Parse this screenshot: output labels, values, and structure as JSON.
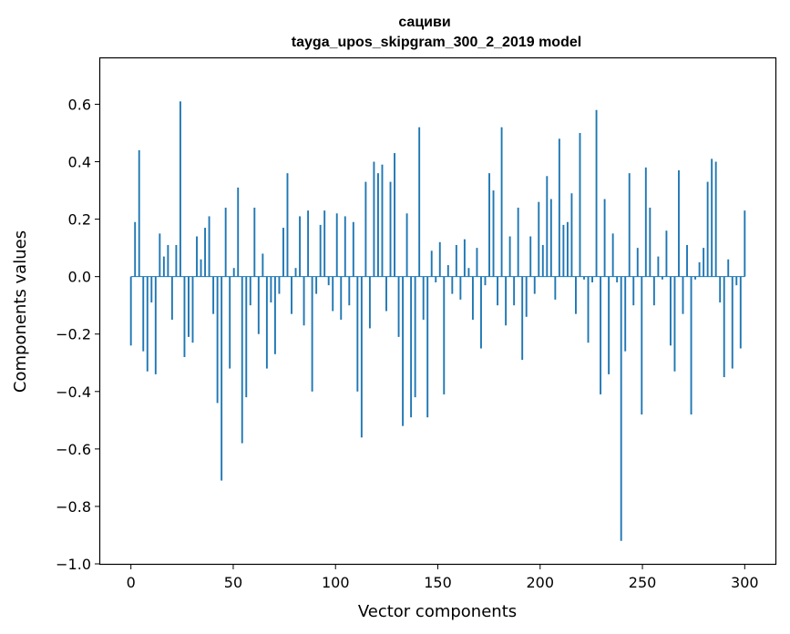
{
  "chart_data": {
    "type": "bar",
    "title": "сациви",
    "subtitle": "tayga_upos_skipgram_300_2_2019 model",
    "xlabel": "Vector components",
    "ylabel": "Components values",
    "xlim": [
      -15,
      315
    ],
    "ylim": [
      -1.0,
      0.76
    ],
    "xticks": [
      0,
      50,
      100,
      150,
      200,
      250,
      300
    ],
    "xtick_labels": [
      "0",
      "50",
      "100",
      "150",
      "200",
      "250",
      "300"
    ],
    "yticks": [
      -1.0,
      -0.8,
      -0.6,
      -0.4,
      -0.2,
      0.0,
      0.2,
      0.4,
      0.6
    ],
    "ytick_labels": [
      "−1.0",
      "−0.8",
      "−0.6",
      "−0.4",
      "−0.2",
      "0.0",
      "0.2",
      "0.4",
      "0.6"
    ],
    "bar_color": "#1f77b4",
    "values": [
      -0.24,
      0.19,
      0.44,
      -0.26,
      -0.33,
      -0.09,
      -0.34,
      0.15,
      0.07,
      0.11,
      -0.15,
      0.11,
      0.61,
      -0.28,
      -0.21,
      -0.23,
      0.14,
      0.06,
      0.17,
      0.21,
      -0.13,
      -0.44,
      -0.71,
      0.24,
      -0.32,
      0.03,
      0.31,
      -0.58,
      -0.42,
      -0.1,
      0.24,
      -0.2,
      0.08,
      -0.32,
      -0.09,
      -0.27,
      -0.06,
      0.17,
      0.36,
      -0.13,
      0.03,
      0.21,
      -0.17,
      0.23,
      -0.4,
      -0.06,
      0.18,
      0.23,
      -0.03,
      -0.12,
      0.22,
      -0.15,
      0.21,
      -0.1,
      0.19,
      -0.4,
      -0.56,
      0.33,
      -0.18,
      0.4,
      0.36,
      0.39,
      -0.12,
      0.33,
      0.43,
      -0.21,
      -0.52,
      0.22,
      -0.49,
      -0.42,
      0.52,
      -0.15,
      -0.49,
      0.09,
      -0.02,
      0.12,
      -0.41,
      0.04,
      -0.06,
      0.11,
      -0.08,
      0.13,
      0.03,
      -0.15,
      0.1,
      -0.25,
      -0.03,
      0.36,
      0.3,
      -0.1,
      0.52,
      -0.17,
      0.14,
      -0.1,
      0.24,
      -0.29,
      -0.14,
      0.14,
      -0.06,
      0.26,
      0.11,
      0.35,
      0.27,
      -0.08,
      0.48,
      0.18,
      0.19,
      0.29,
      -0.13,
      0.5,
      -0.01,
      -0.23,
      -0.02,
      0.58,
      -0.41,
      0.27,
      -0.34,
      0.15,
      -0.02,
      -0.92,
      -0.26,
      0.36,
      -0.1,
      0.1,
      -0.48,
      0.38,
      0.24,
      -0.1,
      0.07,
      -0.01,
      0.16,
      -0.24,
      -0.33,
      0.37,
      -0.13,
      0.11,
      -0.48,
      -0.01,
      0.05,
      0.1,
      0.33,
      0.41,
      0.4,
      -0.09,
      -0.35,
      0.06,
      -0.32,
      -0.03,
      -0.25,
      0.23
    ]
  }
}
